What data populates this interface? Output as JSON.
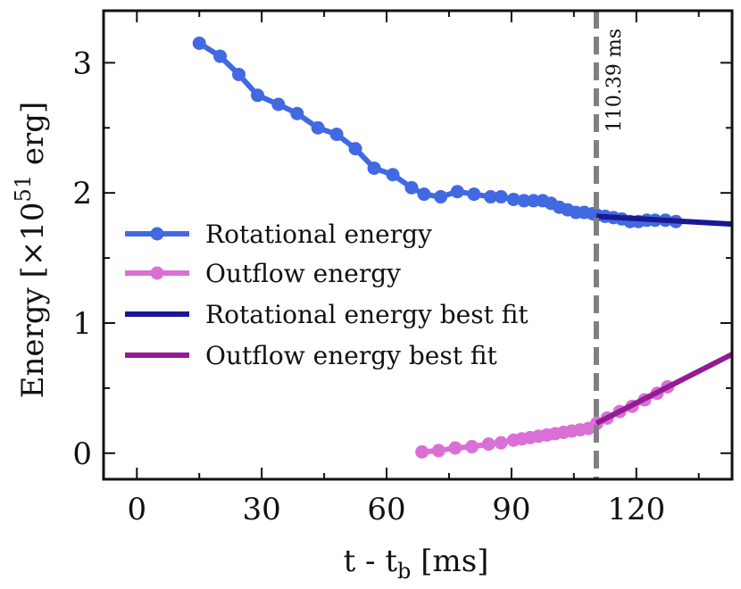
{
  "chart_data": {
    "type": "line",
    "xlabel_main": "t - t",
    "xlabel_sub": "b",
    "xlabel_unit": " [ms]",
    "ylabel_main": "Energy [×10",
    "ylabel_sup": "51",
    "ylabel_unit": " erg]",
    "xlim": [
      -8,
      143
    ],
    "ylim": [
      -0.2,
      3.4
    ],
    "xticks": [
      0,
      30,
      60,
      90,
      120
    ],
    "xtick_labels": [
      "0",
      "30",
      "60",
      "90",
      "120"
    ],
    "yticks": [
      0,
      1,
      2,
      3
    ],
    "ytick_labels": [
      "0",
      "1",
      "2",
      "3"
    ],
    "vline": {
      "x": 110.39,
      "label": "110.39 ms",
      "color": "#808080"
    },
    "series": [
      {
        "name": "Rotational energy",
        "color": "#4169e1",
        "marker": true,
        "x": [
          15,
          20,
          24.5,
          29,
          34,
          38.5,
          43.5,
          48,
          52.5,
          57,
          61.5,
          66,
          69,
          73,
          77,
          81,
          85,
          87.5,
          90.5,
          93,
          95.3,
          97.5,
          99.5,
          101.5,
          103.5,
          105.5,
          107.5,
          109.5,
          110.5,
          112.5,
          114.5,
          116.5,
          118.5,
          120.5,
          122.5,
          124.5,
          127,
          129.5
        ],
        "y": [
          3.15,
          3.05,
          2.91,
          2.75,
          2.68,
          2.61,
          2.5,
          2.45,
          2.34,
          2.19,
          2.14,
          2.04,
          1.99,
          1.97,
          2.01,
          1.99,
          1.97,
          1.97,
          1.95,
          1.94,
          1.94,
          1.94,
          1.92,
          1.89,
          1.87,
          1.85,
          1.85,
          1.84,
          1.83,
          1.82,
          1.81,
          1.8,
          1.78,
          1.78,
          1.79,
          1.79,
          1.79,
          1.78
        ]
      },
      {
        "name": "Outflow energy",
        "color": "#da70d6",
        "marker": true,
        "x": [
          68.5,
          72.5,
          76.5,
          80.5,
          84.5,
          87.5,
          90.5,
          92.5,
          94.5,
          96.5,
          98.5,
          100.5,
          102.5,
          104.5,
          106.5,
          108.5,
          110.5,
          113,
          116,
          119,
          122,
          125,
          127.5
        ],
        "y": [
          0.01,
          0.02,
          0.04,
          0.05,
          0.07,
          0.08,
          0.1,
          0.11,
          0.12,
          0.13,
          0.14,
          0.15,
          0.16,
          0.17,
          0.18,
          0.19,
          0.23,
          0.27,
          0.32,
          0.36,
          0.41,
          0.46,
          0.51
        ]
      },
      {
        "name": "Rotational energy best fit",
        "color": "#191993",
        "marker": false,
        "x": [
          110.39,
          143
        ],
        "y": [
          1.82,
          1.76
        ]
      },
      {
        "name": "Outflow energy best fit",
        "color": "#931b93",
        "marker": false,
        "x": [
          110.39,
          143
        ],
        "y": [
          0.23,
          0.76
        ]
      }
    ]
  }
}
